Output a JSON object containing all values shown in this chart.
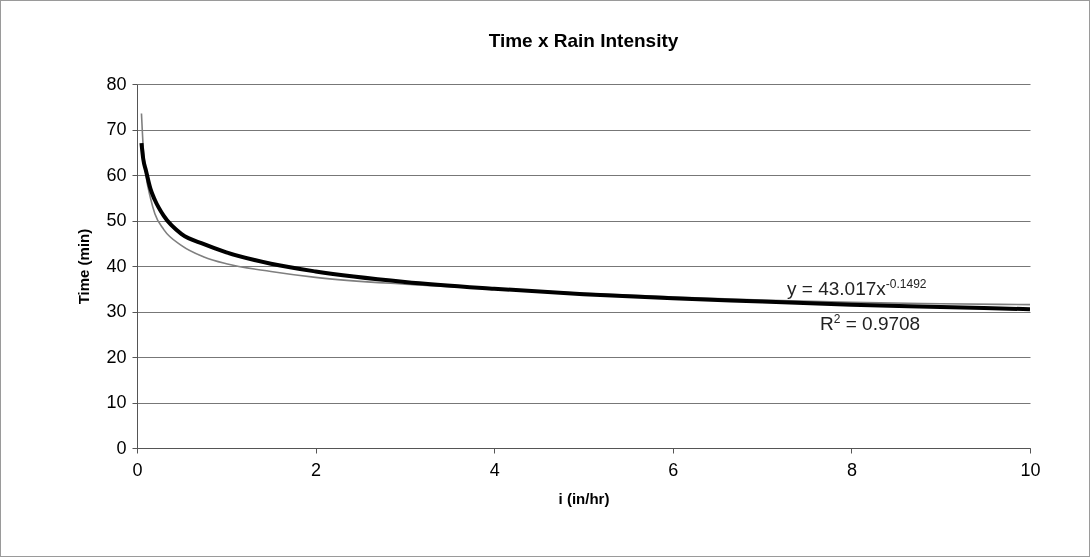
{
  "chart_data": {
    "type": "line",
    "title": "Time x Rain Intensity",
    "xlabel": "i (in/hr)",
    "ylabel": "Time (min)",
    "xlim": [
      0,
      10
    ],
    "xticks": [
      0,
      2,
      4,
      6,
      8,
      10
    ],
    "ylim": [
      0,
      80
    ],
    "yticks": [
      0,
      10,
      20,
      30,
      40,
      50,
      60,
      70,
      80
    ],
    "grid": "y",
    "marker": "none",
    "series": [
      {
        "color": "#7f7f7f",
        "x": [
          0.05,
          0.07,
          0.1,
          0.15,
          0.2,
          0.3,
          0.5,
          0.75,
          1,
          1.5,
          2,
          3,
          4,
          5,
          6,
          7,
          8,
          9,
          10
        ],
        "values": [
          73.5,
          66,
          60,
          55,
          51.5,
          48,
          44.5,
          42,
          40.5,
          38.8,
          37.5,
          36,
          35,
          34,
          33.2,
          32.5,
          32,
          31.7,
          31.5
        ]
      },
      {
        "type": "line",
        "color": "#000000",
        "x": [
          0.05,
          0.07,
          0.1,
          0.15,
          0.2,
          0.3,
          0.5,
          0.75,
          1,
          1.5,
          2,
          3,
          4,
          5,
          6,
          7,
          8,
          9,
          10
        ],
        "values": [
          67,
          63.5,
          61,
          57,
          54.5,
          51,
          47,
          44.8,
          43,
          40.5,
          38.8,
          36.5,
          35,
          33.8,
          32.9,
          32.2,
          31.5,
          31,
          30.5
        ]
      }
    ],
    "annotations": [
      "y = 43.017x$^{-0.1492}$",
      "R$^{2}$ = 0.9708"
    ]
  }
}
